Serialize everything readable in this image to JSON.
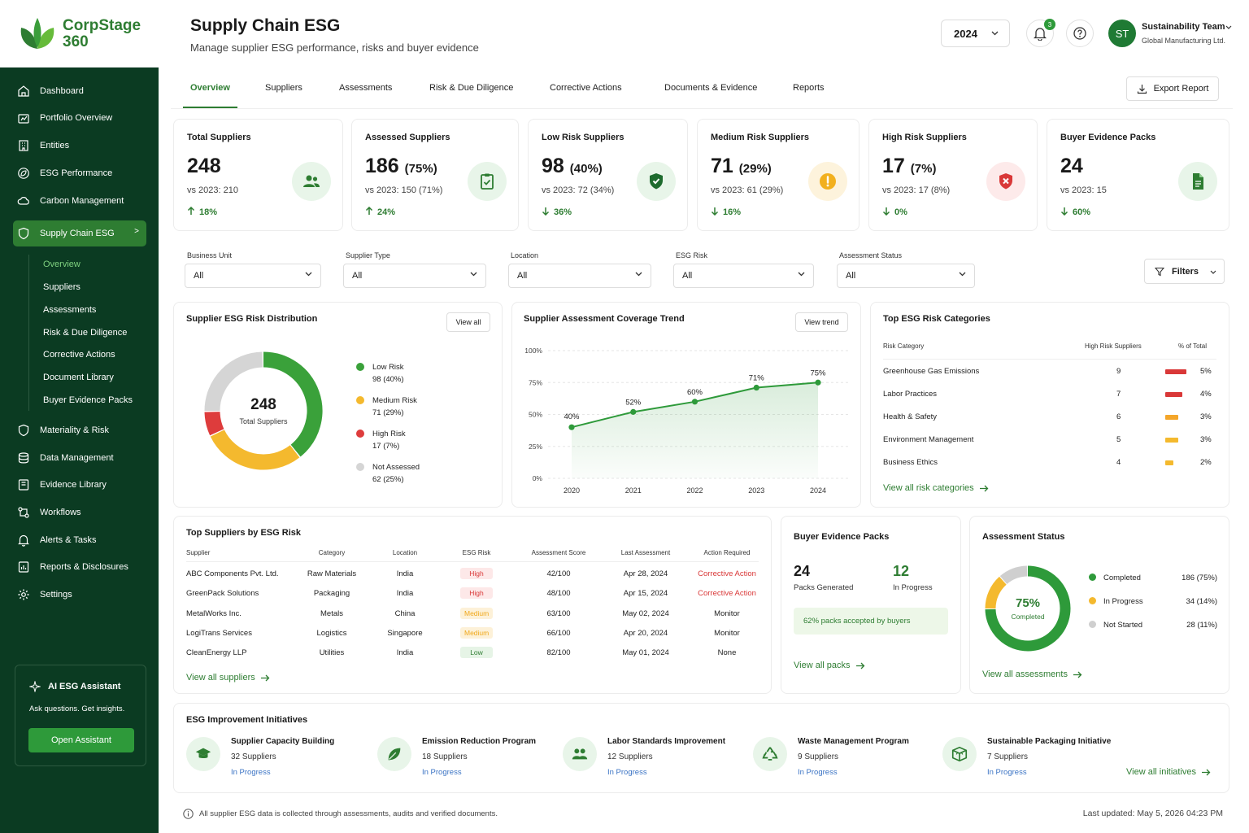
{
  "brand": {
    "name_line1": "CorpStage",
    "name_line2": "360"
  },
  "sidebar": {
    "items": [
      {
        "label": "Dashboard",
        "icon": "home-icon"
      },
      {
        "label": "Portfolio Overview",
        "icon": "portfolio-icon"
      },
      {
        "label": "Entities",
        "icon": "building-icon"
      },
      {
        "label": "ESG Performance",
        "icon": "leaf-icon"
      },
      {
        "label": "Carbon Management",
        "icon": "cloud-icon"
      },
      {
        "label": "Supply Chain ESG",
        "icon": "shield-icon"
      },
      {
        "label": "Materiality & Risk",
        "icon": "shield-icon"
      },
      {
        "label": "Data Management",
        "icon": "database-icon"
      },
      {
        "label": "Evidence Library",
        "icon": "book-icon"
      },
      {
        "label": "Workflows",
        "icon": "workflow-icon"
      },
      {
        "label": "Alerts & Tasks",
        "icon": "bell-icon"
      },
      {
        "label": "Reports & Disclosures",
        "icon": "report-icon"
      },
      {
        "label": "Settings",
        "icon": "gear-icon"
      }
    ],
    "active_chevron": ">",
    "subitems": [
      "Overview",
      "Suppliers",
      "Assessments",
      "Risk & Due Diligence",
      "Corrective Actions",
      "Document Library",
      "Buyer Evidence Packs"
    ],
    "assistant": {
      "title": "AI ESG Assistant",
      "subtitle": "Ask questions. Get insights.",
      "button": "Open Assistant"
    }
  },
  "header": {
    "title": "Supply Chain ESG",
    "subtitle": "Manage supplier ESG performance, risks and buyer evidence",
    "year": "2024",
    "notification_count": "3",
    "user_initials": "ST",
    "user_name": "Sustainability Team",
    "user_org": "Global Manufacturing Ltd."
  },
  "tabs": [
    "Overview",
    "Suppliers",
    "Assessments",
    "Risk & Due Diligence",
    "Corrective Actions",
    "Documents & Evidence",
    "Reports"
  ],
  "export_label": "Export Report",
  "kpis": [
    {
      "title": "Total Suppliers",
      "value": "248",
      "pct": "",
      "vs": "vs 2023: 210",
      "change": "18%",
      "dir": "up",
      "icon": "users-icon",
      "bg": "#e8f5e9",
      "fg": "#2e7d32"
    },
    {
      "title": "Assessed Suppliers",
      "value": "186",
      "pct": "(75%)",
      "vs": "vs 2023: 150 (71%)",
      "change": "24%",
      "dir": "up",
      "icon": "clipboard-check-icon",
      "bg": "#e8f5e9",
      "fg": "#2e7d32"
    },
    {
      "title": "Low Risk Suppliers",
      "value": "98",
      "pct": "(40%)",
      "vs": "vs 2023: 72 (34%)",
      "change": "36%",
      "dir": "down",
      "icon": "shield-check-icon",
      "bg": "#e8f5e9",
      "fg": "#1e6b2e"
    },
    {
      "title": "Medium Risk Suppliers",
      "value": "71",
      "pct": "(29%)",
      "vs": "vs 2023: 61 (29%)",
      "change": "16%",
      "dir": "down",
      "icon": "warning-icon",
      "bg": "#fdf3dc",
      "fg": "#f2b01e"
    },
    {
      "title": "High Risk Suppliers",
      "value": "17",
      "pct": "(7%)",
      "vs": "vs 2023: 17 (8%)",
      "change": "0%",
      "dir": "down",
      "icon": "shield-x-icon",
      "bg": "#fdeaea",
      "fg": "#d93838"
    },
    {
      "title": "Buyer Evidence Packs",
      "value": "24",
      "pct": "",
      "vs": "vs 2023: 15",
      "change": "60%",
      "dir": "down",
      "icon": "document-icon",
      "bg": "#e8f5e9",
      "fg": "#2e7d32"
    }
  ],
  "filters": [
    {
      "label": "Business Unit",
      "value": "All"
    },
    {
      "label": "Supplier Type",
      "value": "All"
    },
    {
      "label": "Location",
      "value": "All"
    },
    {
      "label": "ESG Risk",
      "value": "All"
    },
    {
      "label": "Assessment Status",
      "value": "All"
    }
  ],
  "filters_button": "Filters",
  "risk_distribution": {
    "title": "Supplier ESG Risk Distribution",
    "view_all": "View all",
    "center_value": "248",
    "center_label": "Total Suppliers",
    "segments": [
      {
        "label": "Low Risk",
        "value": "98 (40%)",
        "count": 98,
        "color": "#3aa13a"
      },
      {
        "label": "Medium Risk",
        "value": "71 (29%)",
        "count": 71,
        "color": "#f4b92e"
      },
      {
        "label": "High Risk",
        "value": "17 (7%)",
        "count": 17,
        "color": "#de3c3c"
      },
      {
        "label": "Not Assessed",
        "value": "62 (25%)",
        "count": 62,
        "color": "#d5d5d5"
      }
    ]
  },
  "chart_data": {
    "type": "area",
    "title": "Supplier Assessment Coverage Trend",
    "x": [
      "2020",
      "2021",
      "2022",
      "2023",
      "2024"
    ],
    "values": [
      40,
      52,
      60,
      71,
      75
    ],
    "data_labels": [
      "40%",
      "52%",
      "60%",
      "71%",
      "75%"
    ],
    "yticks": [
      "0%",
      "25%",
      "50%",
      "75%",
      "100%"
    ],
    "ylim": [
      0,
      100
    ],
    "xlabel": "",
    "ylabel": "",
    "grid": true,
    "color": "#2e9a3a"
  },
  "trend_button": "View trend",
  "risk_categories": {
    "title": "Top ESG Risk Categories",
    "headers": [
      "Risk Category",
      "High Risk Suppliers",
      "% of Total"
    ],
    "rows": [
      {
        "name": "Greenhouse Gas Emissions",
        "count": "9",
        "pct": "5%",
        "share": 5,
        "color": "#d93838"
      },
      {
        "name": "Labor Practices",
        "count": "7",
        "pct": "4%",
        "share": 4,
        "color": "#d93838"
      },
      {
        "name": "Health & Safety",
        "count": "6",
        "pct": "3%",
        "share": 3,
        "color": "#f4a62a"
      },
      {
        "name": "Environment Management",
        "count": "5",
        "pct": "3%",
        "share": 3,
        "color": "#f4b92e"
      },
      {
        "name": "Business Ethics",
        "count": "4",
        "pct": "2%",
        "share": 2,
        "color": "#f4b92e"
      }
    ],
    "link": "View all risk categories"
  },
  "top_suppliers": {
    "title": "Top Suppliers by ESG Risk",
    "headers": [
      "Supplier",
      "Category",
      "Location",
      "ESG Risk",
      "Assessment Score",
      "Last Assessment",
      "Action Required"
    ],
    "rows": [
      {
        "supplier": "ABC Components Pvt. Ltd.",
        "category": "Raw Materials",
        "location": "India",
        "risk": "High",
        "score": "42/100",
        "last": "Apr 28, 2024",
        "action": "Corrective Action"
      },
      {
        "supplier": "GreenPack Solutions",
        "category": "Packaging",
        "location": "India",
        "risk": "High",
        "score": "48/100",
        "last": "Apr 15, 2024",
        "action": "Corrective Action"
      },
      {
        "supplier": "MetalWorks Inc.",
        "category": "Metals",
        "location": "China",
        "risk": "Medium",
        "score": "63/100",
        "last": "May 02, 2024",
        "action": "Monitor"
      },
      {
        "supplier": "LogiTrans Services",
        "category": "Logistics",
        "location": "Singapore",
        "risk": "Medium",
        "score": "66/100",
        "last": "Apr 20, 2024",
        "action": "Monitor"
      },
      {
        "supplier": "CleanEnergy LLP",
        "category": "Utilities",
        "location": "India",
        "risk": "Low",
        "score": "82/100",
        "last": "May 01, 2024",
        "action": "None"
      }
    ],
    "link": "View all suppliers"
  },
  "buyer_packs": {
    "title": "Buyer Evidence Packs",
    "generated": "24",
    "generated_label": "Packs Generated",
    "in_progress": "12",
    "in_progress_label": "In Progress",
    "note": "62% packs accepted by buyers",
    "link": "View all packs"
  },
  "assessment_status": {
    "title": "Assessment Status",
    "center_value": "75%",
    "center_label": "Completed",
    "items": [
      {
        "label": "Completed",
        "value": "186 (75%)",
        "count": 186,
        "color": "#2e9a3a"
      },
      {
        "label": "In Progress",
        "value": "34 (14%)",
        "count": 34,
        "color": "#f4b92e"
      },
      {
        "label": "Not Started",
        "value": "28 (11%)",
        "count": 28,
        "color": "#cfcfcf"
      }
    ],
    "link": "View all assessments"
  },
  "initiatives": {
    "title": "ESG Improvement Initiatives",
    "items": [
      {
        "name": "Supplier Capacity Building",
        "suppliers": "32 Suppliers",
        "status": "In Progress",
        "icon": "graduation-cap-icon"
      },
      {
        "name": "Emission Reduction Program",
        "suppliers": "18 Suppliers",
        "status": "In Progress",
        "icon": "leaf-icon"
      },
      {
        "name": "Labor Standards Improvement",
        "suppliers": "12 Suppliers",
        "status": "In Progress",
        "icon": "people-icon"
      },
      {
        "name": "Waste Management Program",
        "suppliers": "9 Suppliers",
        "status": "In Progress",
        "icon": "recycle-icon"
      },
      {
        "name": "Sustainable Packaging Initiative",
        "suppliers": "7 Suppliers",
        "status": "In Progress",
        "icon": "box-icon"
      }
    ],
    "link": "View all initiatives"
  },
  "footer": {
    "note": "All supplier ESG data is collected through assessments, audits and verified documents.",
    "updated": "Last updated: May 5, 2026 04:23 PM"
  }
}
